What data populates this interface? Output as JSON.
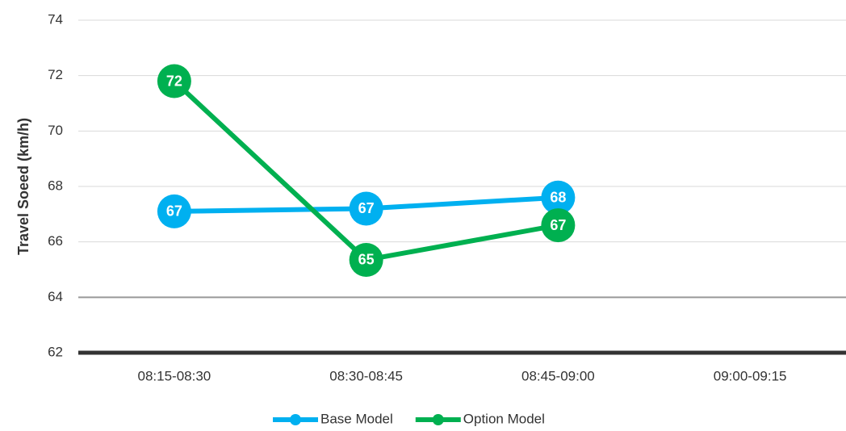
{
  "chart_data": {
    "type": "line",
    "y_label": "Travel Soeed (km/h)",
    "categories": [
      "08:15-08:30",
      "08:30-08:45",
      "08:45-09:00",
      "09:00-09:15"
    ],
    "series": [
      {
        "name": "Base Model",
        "color": "#00b0f0",
        "values": [
          67.1,
          67.2,
          67.6,
          null
        ],
        "value_labels": [
          "67",
          "67",
          "68",
          null
        ]
      },
      {
        "name": "Option Model",
        "color": "#00b050",
        "values": [
          71.8,
          65.35,
          66.6,
          null
        ],
        "value_labels": [
          "72",
          "65",
          "67",
          null
        ]
      }
    ],
    "ylim": [
      62,
      74
    ],
    "yticks": [
      62,
      64,
      66,
      68,
      70,
      72,
      74
    ],
    "grid": true,
    "legend": "bottom"
  }
}
